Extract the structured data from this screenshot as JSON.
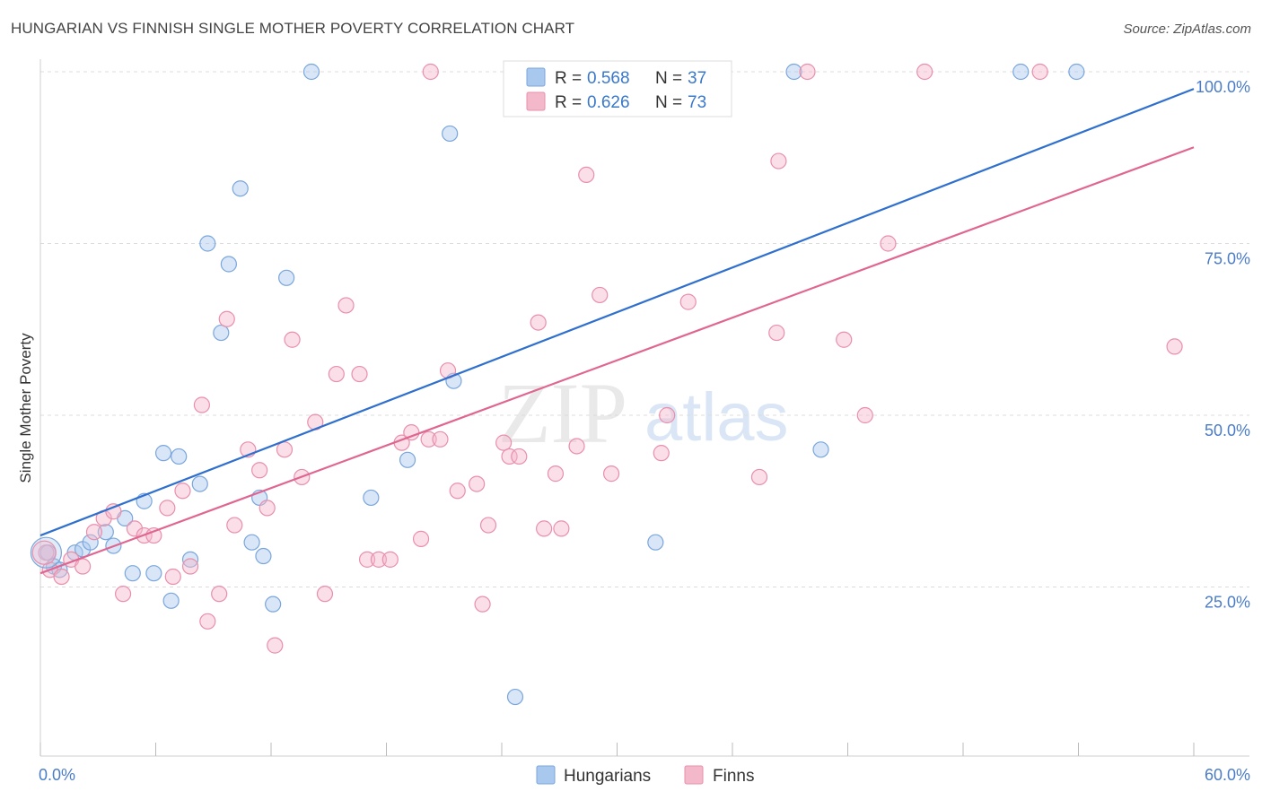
{
  "header": {
    "title": "HUNGARIAN VS FINNISH SINGLE MOTHER POVERTY CORRELATION CHART",
    "source": "Source: ZipAtlas.com"
  },
  "watermark": {
    "zip": "ZIP",
    "atlas": "atlas"
  },
  "chart_data": {
    "type": "scatter",
    "ylabel": "Single Mother Poverty",
    "xlim": [
      0,
      60
    ],
    "ylim": [
      0,
      105
    ],
    "x_tick_labels": [
      "0.0%",
      "60.0%"
    ],
    "y_ticks": [
      25,
      50,
      75,
      100
    ],
    "y_tick_labels": [
      "25.0%",
      "50.0%",
      "75.0%",
      "100.0%"
    ],
    "grid": true,
    "legend_placement": "top-center",
    "series": [
      {
        "name": "Hungarians",
        "color": "#a9c8ee",
        "stroke": "#7aa6dc",
        "line_color": "#2f6fce",
        "r_label": "R =",
        "r_value": "0.568",
        "n_label": "N =",
        "n_value": "37",
        "trend": [
          [
            0,
            32.5
          ],
          [
            60,
            97.5
          ]
        ],
        "points": [
          [
            0.4,
            30
          ],
          [
            0.7,
            28
          ],
          [
            1.0,
            27.5
          ],
          [
            1.8,
            30
          ],
          [
            2.2,
            30.5
          ],
          [
            2.6,
            31.5
          ],
          [
            3.4,
            33
          ],
          [
            3.8,
            31
          ],
          [
            4.4,
            35
          ],
          [
            4.8,
            27
          ],
          [
            5.4,
            37.5
          ],
          [
            5.9,
            27
          ],
          [
            6.4,
            44.5
          ],
          [
            6.8,
            23
          ],
          [
            7.2,
            44
          ],
          [
            7.8,
            29
          ],
          [
            8.3,
            40
          ],
          [
            8.7,
            75
          ],
          [
            9.4,
            62
          ],
          [
            9.8,
            72
          ],
          [
            10.4,
            83
          ],
          [
            11.0,
            31.5
          ],
          [
            11.4,
            38
          ],
          [
            11.6,
            29.5
          ],
          [
            12.1,
            22.5
          ],
          [
            12.8,
            70
          ],
          [
            14.1,
            100
          ],
          [
            17.2,
            38
          ],
          [
            19.1,
            43.5
          ],
          [
            21.3,
            91
          ],
          [
            21.5,
            55
          ],
          [
            24.7,
            9
          ],
          [
            32.0,
            31.5
          ],
          [
            39.2,
            100
          ],
          [
            40.6,
            45
          ],
          [
            51.0,
            100
          ],
          [
            53.9,
            100
          ]
        ]
      },
      {
        "name": "Finns",
        "color": "#f4b8cb",
        "stroke": "#e98fab",
        "line_color": "#e06591",
        "r_label": "R =",
        "r_value": "0.626",
        "n_label": "N =",
        "n_value": "73",
        "trend": [
          [
            0,
            27
          ],
          [
            60,
            89
          ]
        ],
        "points": [
          [
            0.3,
            30
          ],
          [
            0.5,
            27.5
          ],
          [
            1.1,
            26.5
          ],
          [
            1.6,
            29
          ],
          [
            2.2,
            28
          ],
          [
            2.8,
            33
          ],
          [
            3.3,
            35
          ],
          [
            3.8,
            36
          ],
          [
            4.3,
            24
          ],
          [
            4.9,
            33.5
          ],
          [
            5.4,
            32.5
          ],
          [
            5.9,
            32.5
          ],
          [
            6.6,
            36.5
          ],
          [
            6.9,
            26.5
          ],
          [
            7.4,
            39
          ],
          [
            7.8,
            28
          ],
          [
            8.4,
            51.5
          ],
          [
            8.7,
            20
          ],
          [
            9.3,
            24
          ],
          [
            9.7,
            64
          ],
          [
            10.1,
            34
          ],
          [
            10.8,
            45
          ],
          [
            11.4,
            42
          ],
          [
            11.8,
            36.5
          ],
          [
            12.2,
            16.5
          ],
          [
            12.7,
            45
          ],
          [
            13.1,
            61
          ],
          [
            13.6,
            41
          ],
          [
            14.3,
            49
          ],
          [
            14.8,
            24
          ],
          [
            15.4,
            56
          ],
          [
            15.9,
            66
          ],
          [
            16.6,
            56
          ],
          [
            17.0,
            29
          ],
          [
            17.6,
            29
          ],
          [
            18.2,
            29
          ],
          [
            18.8,
            46
          ],
          [
            19.3,
            47.5
          ],
          [
            19.8,
            32
          ],
          [
            20.2,
            46.5
          ],
          [
            20.8,
            46.5
          ],
          [
            21.2,
            56.5
          ],
          [
            21.7,
            39
          ],
          [
            22.7,
            40
          ],
          [
            23.0,
            22.5
          ],
          [
            23.3,
            34
          ],
          [
            24.1,
            46
          ],
          [
            24.4,
            44
          ],
          [
            24.9,
            44
          ],
          [
            25.9,
            63.5
          ],
          [
            26.2,
            33.5
          ],
          [
            26.8,
            41.5
          ],
          [
            27.1,
            33.5
          ],
          [
            27.9,
            45.5
          ],
          [
            28.4,
            85
          ],
          [
            29.1,
            67.5
          ],
          [
            29.7,
            41.5
          ],
          [
            30.5,
            100
          ],
          [
            32.3,
            44.5
          ],
          [
            32.6,
            50
          ],
          [
            33.7,
            66.5
          ],
          [
            35.0,
            100
          ],
          [
            37.4,
            41
          ],
          [
            38.3,
            62
          ],
          [
            38.4,
            87
          ],
          [
            39.9,
            100
          ],
          [
            41.8,
            61
          ],
          [
            42.9,
            50
          ],
          [
            44.1,
            75
          ],
          [
            46.0,
            100
          ],
          [
            52.0,
            100
          ],
          [
            59.0,
            60
          ],
          [
            20.3,
            100
          ]
        ]
      }
    ]
  }
}
